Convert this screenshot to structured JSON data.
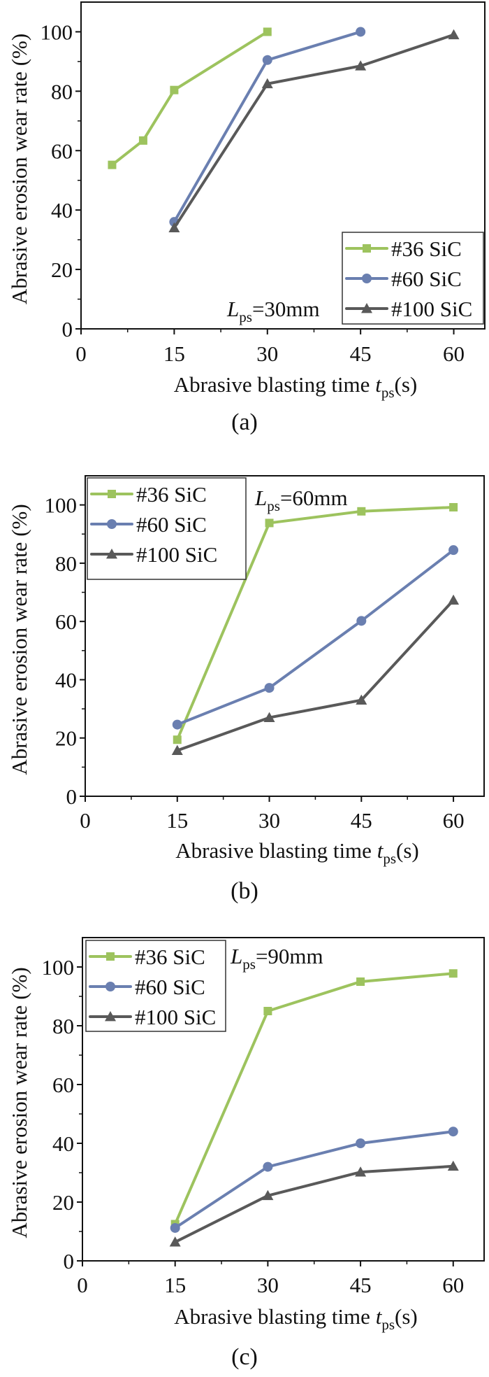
{
  "figure": {
    "colors": {
      "sic36": "#9dc35e",
      "sic60": "#6a7fb0",
      "sic100": "#595959",
      "axis": "#111111"
    },
    "marker_types": {
      "sic36": "square-icon",
      "sic60": "circle-icon",
      "sic100": "triangle-icon"
    }
  },
  "chart_data": [
    {
      "type": "line",
      "panel_label": "(a)",
      "title": "",
      "xlabel": "Abrasive blasting time ",
      "xlabel_var": "t",
      "xlabel_sub": "ps",
      "xlabel_unit": "(s)",
      "ylabel": "Abrasive erosion wear rate (%)",
      "xlim": [
        0,
        65
      ],
      "ylim": [
        0,
        110
      ],
      "xticks": [
        0,
        15,
        30,
        45,
        60
      ],
      "yticks": [
        0,
        20,
        40,
        60,
        80,
        100
      ],
      "grid": false,
      "legend_position": "bottom-right",
      "annotation": {
        "var": "L",
        "sub": "ps",
        "text": "=30mm"
      },
      "series": [
        {
          "name": "#36 SiC",
          "key": "sic36",
          "x": [
            5,
            10,
            15,
            30
          ],
          "y": [
            55.2,
            63.4,
            80.4,
            100
          ]
        },
        {
          "name": "#60 SiC",
          "key": "sic60",
          "x": [
            15,
            30,
            45
          ],
          "y": [
            36,
            90.5,
            100
          ]
        },
        {
          "name": "#100 SiC",
          "key": "sic100",
          "x": [
            15,
            30,
            45,
            60
          ],
          "y": [
            34,
            82.5,
            88.5,
            99
          ]
        }
      ]
    },
    {
      "type": "line",
      "panel_label": "(b)",
      "title": "",
      "xlabel": "Abrasive blasting time ",
      "xlabel_var": "t",
      "xlabel_sub": "ps",
      "xlabel_unit": "(s)",
      "ylabel": "Abrasive erosion wear rate (%)",
      "xlim": [
        0,
        65
      ],
      "ylim": [
        0,
        110
      ],
      "xticks": [
        0,
        15,
        30,
        45,
        60
      ],
      "yticks": [
        0,
        20,
        40,
        60,
        80,
        100
      ],
      "grid": false,
      "legend_position": "top-left",
      "annotation": {
        "var": "L",
        "sub": "ps",
        "text": "=60mm"
      },
      "series": [
        {
          "name": "#36 SiC",
          "key": "sic36",
          "x": [
            15,
            30,
            45,
            60
          ],
          "y": [
            19.4,
            93.8,
            97.8,
            99.2
          ]
        },
        {
          "name": "#60 SiC",
          "key": "sic60",
          "x": [
            15,
            30,
            45,
            60
          ],
          "y": [
            24.6,
            37.2,
            60.2,
            84.5
          ]
        },
        {
          "name": "#100 SiC",
          "key": "sic100",
          "x": [
            15,
            30,
            45,
            60
          ],
          "y": [
            15.7,
            27,
            33,
            67.3
          ]
        }
      ]
    },
    {
      "type": "line",
      "panel_label": "(c)",
      "title": "",
      "xlabel": "Abrasive blasting time ",
      "xlabel_var": "t",
      "xlabel_sub": "ps",
      "xlabel_unit": "(s)",
      "ylabel": "Abrasive erosion wear rate (%)",
      "xlim": [
        0,
        65
      ],
      "ylim": [
        0,
        110
      ],
      "xticks": [
        0,
        15,
        30,
        45,
        60
      ],
      "yticks": [
        0,
        20,
        40,
        60,
        80,
        100
      ],
      "grid": false,
      "legend_position": "top-left",
      "annotation": {
        "var": "L",
        "sub": "ps",
        "text": "=90mm"
      },
      "series": [
        {
          "name": "#36 SiC",
          "key": "sic36",
          "x": [
            15,
            30,
            45,
            60
          ],
          "y": [
            12.5,
            85,
            95,
            97.8
          ]
        },
        {
          "name": "#60 SiC",
          "key": "sic60",
          "x": [
            15,
            30,
            45,
            60
          ],
          "y": [
            11.2,
            32,
            40,
            44
          ]
        },
        {
          "name": "#100 SiC",
          "key": "sic100",
          "x": [
            15,
            30,
            45,
            60
          ],
          "y": [
            6.4,
            22.2,
            30.2,
            32.2
          ]
        }
      ]
    }
  ]
}
